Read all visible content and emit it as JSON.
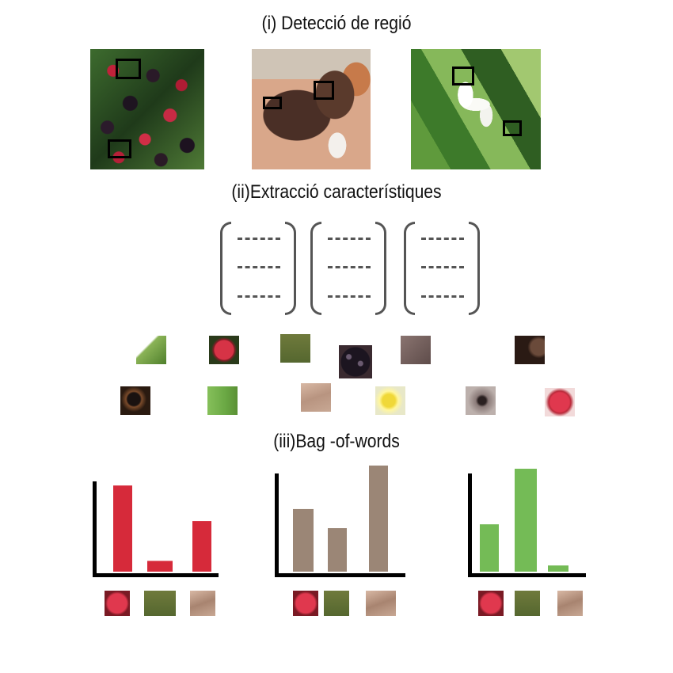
{
  "titles": {
    "step1": "(i) Detecció de regió",
    "step2": "(ii)Extracció característiques",
    "step3": "(iii)Bag -of-words"
  },
  "images": [
    {
      "name": "blackberries",
      "icon": "blackberry-photo"
    },
    {
      "name": "dog",
      "icon": "dog-photo"
    },
    {
      "name": "flower",
      "icon": "flower-photo"
    }
  ],
  "colors": {
    "berry_bar": "#d62a3a",
    "dog_bar": "#9b8676",
    "flower_bar": "#74bb56"
  },
  "chart_data": [
    {
      "type": "bar",
      "categories": [
        "berry",
        "leaf",
        "fur"
      ],
      "values": [
        0.8,
        0.1,
        0.47
      ]
    },
    {
      "type": "bar",
      "categories": [
        "berry",
        "leaf",
        "fur"
      ],
      "values": [
        0.59,
        0.41,
        1.0
      ]
    },
    {
      "type": "bar",
      "categories": [
        "berry",
        "leaf",
        "fur"
      ],
      "values": [
        0.46,
        1.0,
        0.06
      ]
    }
  ]
}
